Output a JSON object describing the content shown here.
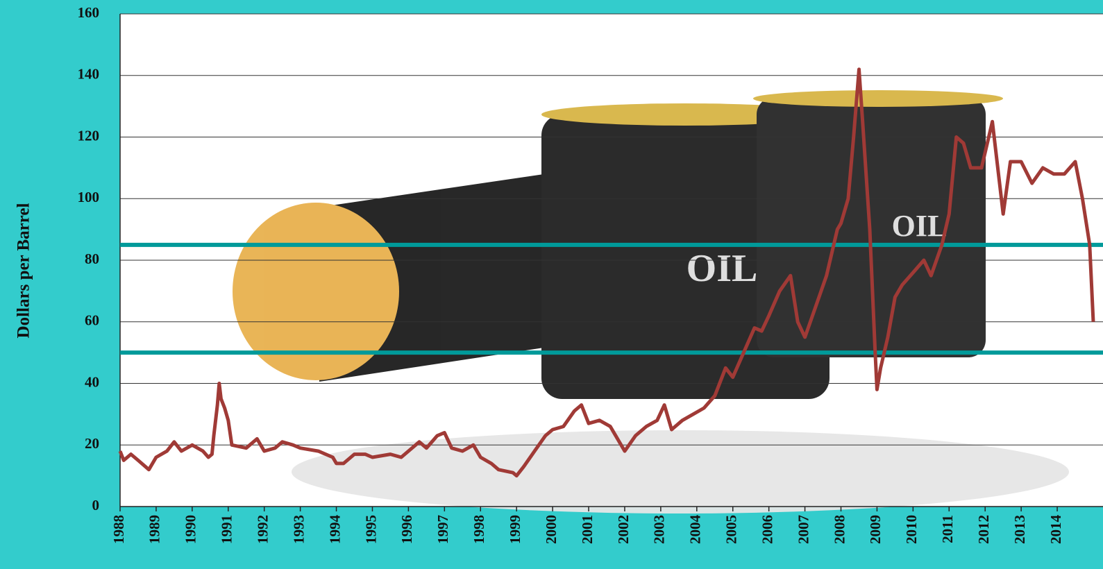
{
  "chart_data": {
    "type": "line",
    "y_label": "Dollars per Barrel",
    "xlim": [
      1988,
      2015.27
    ],
    "ylim": [
      0,
      160
    ],
    "xticks": [
      1988,
      1989,
      1990,
      1991,
      1992,
      1993,
      1994,
      1995,
      1996,
      1997,
      1998,
      1999,
      2000,
      2001,
      2002,
      2003,
      2004,
      2005,
      2006,
      2007,
      2008,
      2009,
      2010,
      2011,
      2012,
      2013,
      2014
    ],
    "yticks": [
      0,
      20,
      40,
      60,
      80,
      100,
      120,
      140,
      160
    ],
    "grid": true,
    "color": "#a03a36",
    "x": [
      1988.0,
      1988.1,
      1988.3,
      1988.5,
      1988.8,
      1989.0,
      1989.3,
      1989.5,
      1989.7,
      1990.0,
      1990.3,
      1990.45,
      1990.55,
      1990.6,
      1990.7,
      1990.75,
      1990.8,
      1990.9,
      1991.0,
      1991.1,
      1991.5,
      1991.8,
      1992.0,
      1992.3,
      1992.5,
      1992.8,
      1993.0,
      1993.5,
      1993.9,
      1994.0,
      1994.2,
      1994.5,
      1994.8,
      1995.0,
      1995.5,
      1995.8,
      1996.0,
      1996.3,
      1996.5,
      1996.8,
      1997.0,
      1997.2,
      1997.5,
      1997.8,
      1998.0,
      1998.3,
      1998.5,
      1998.9,
      1999.0,
      1999.2,
      1999.5,
      1999.8,
      2000.0,
      2000.3,
      2000.6,
      2000.8,
      2001.0,
      2001.3,
      2001.6,
      2001.9,
      2002.0,
      2002.3,
      2002.6,
      2002.9,
      2003.1,
      2003.3,
      2003.6,
      2003.9,
      2004.2,
      2004.5,
      2004.8,
      2005.0,
      2005.3,
      2005.6,
      2005.8,
      2006.0,
      2006.3,
      2006.6,
      2006.8,
      2007.0,
      2007.3,
      2007.6,
      2007.9,
      2008.0,
      2008.2,
      2008.35,
      2008.5,
      2008.6,
      2008.8,
      2008.95,
      2009.0,
      2009.1,
      2009.3,
      2009.5,
      2009.7,
      2010.0,
      2010.3,
      2010.5,
      2010.8,
      2011.0,
      2011.2,
      2011.4,
      2011.6,
      2011.9,
      2012.2,
      2012.4,
      2012.5,
      2012.7,
      2013.0,
      2013.3,
      2013.6,
      2013.9,
      2014.2,
      2014.5,
      2014.7,
      2014.9,
      2015.0
    ],
    "values": [
      18,
      15,
      17,
      15,
      12,
      16,
      18,
      21,
      18,
      20,
      18,
      16,
      17,
      23,
      33,
      40,
      35,
      32,
      28,
      20,
      19,
      22,
      18,
      19,
      21,
      20,
      19,
      18,
      16,
      14,
      14,
      17,
      17,
      16,
      17,
      16,
      18,
      21,
      19,
      23,
      24,
      19,
      18,
      20,
      16,
      14,
      12,
      11,
      10,
      13,
      18,
      23,
      25,
      26,
      31,
      33,
      27,
      28,
      26,
      20,
      18,
      23,
      26,
      28,
      33,
      25,
      28,
      30,
      32,
      36,
      45,
      42,
      50,
      58,
      57,
      62,
      70,
      75,
      60,
      55,
      65,
      75,
      90,
      92,
      100,
      120,
      142,
      125,
      90,
      50,
      38,
      45,
      55,
      68,
      72,
      76,
      80,
      75,
      85,
      95,
      120,
      118,
      110,
      110,
      125,
      105,
      95,
      112,
      112,
      105,
      110,
      108,
      108,
      112,
      100,
      85,
      60
    ],
    "reference_lines": [
      {
        "value": 85,
        "color": "#009a9a"
      },
      {
        "value": 50,
        "color": "#009a9a"
      }
    ]
  }
}
